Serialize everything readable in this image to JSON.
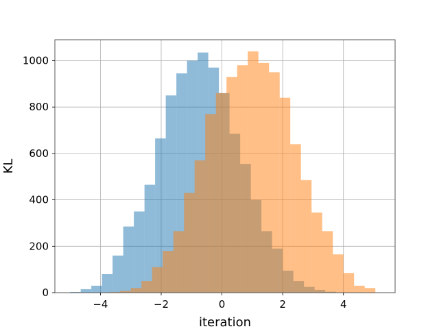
{
  "chart_data": {
    "type": "bar",
    "subtype": "overlapping-histogram",
    "xlabel": "iteration",
    "ylabel": "KL",
    "title": "",
    "xlim": [
      -5.5,
      5.7
    ],
    "ylim": [
      0,
      1090
    ],
    "xticks": [
      -4,
      -2,
      0,
      2,
      4
    ],
    "yticks": [
      0,
      200,
      400,
      600,
      800,
      1000
    ],
    "grid": true,
    "series": [
      {
        "color": "#1f77b4",
        "opacity": 0.5,
        "bins": [
          [
            -5.0,
            -4.65,
            3
          ],
          [
            -4.65,
            -4.3,
            15
          ],
          [
            -4.3,
            -3.95,
            30
          ],
          [
            -3.95,
            -3.6,
            80
          ],
          [
            -3.6,
            -3.25,
            160
          ],
          [
            -3.25,
            -2.9,
            285
          ],
          [
            -2.9,
            -2.55,
            350
          ],
          [
            -2.55,
            -2.2,
            465
          ],
          [
            -2.2,
            -1.85,
            665
          ],
          [
            -1.85,
            -1.5,
            850
          ],
          [
            -1.5,
            -1.15,
            945
          ],
          [
            -1.15,
            -0.8,
            1000
          ],
          [
            -0.8,
            -0.45,
            1035
          ],
          [
            -0.45,
            -0.1,
            970
          ],
          [
            -0.1,
            0.25,
            860
          ],
          [
            0.25,
            0.6,
            685
          ],
          [
            0.6,
            0.95,
            555
          ],
          [
            0.95,
            1.3,
            400
          ],
          [
            1.3,
            1.65,
            265
          ],
          [
            1.65,
            2.0,
            190
          ],
          [
            2.0,
            2.35,
            95
          ],
          [
            2.35,
            2.7,
            50
          ],
          [
            2.7,
            3.05,
            25
          ],
          [
            3.05,
            3.4,
            12
          ],
          [
            3.4,
            3.75,
            4
          ]
        ]
      },
      {
        "color": "#ff7f0e",
        "opacity": 0.5,
        "bins": [
          [
            -3.7,
            -3.35,
            3
          ],
          [
            -3.35,
            -3.0,
            8
          ],
          [
            -3.0,
            -2.65,
            20
          ],
          [
            -2.65,
            -2.3,
            50
          ],
          [
            -2.3,
            -1.95,
            110
          ],
          [
            -1.95,
            -1.6,
            180
          ],
          [
            -1.6,
            -1.25,
            265
          ],
          [
            -1.25,
            -0.9,
            430
          ],
          [
            -0.9,
            -0.55,
            570
          ],
          [
            -0.55,
            -0.2,
            770
          ],
          [
            -0.2,
            0.15,
            860
          ],
          [
            0.15,
            0.5,
            930
          ],
          [
            0.5,
            0.85,
            980
          ],
          [
            0.85,
            1.2,
            1040
          ],
          [
            1.2,
            1.55,
            990
          ],
          [
            1.55,
            1.9,
            950
          ],
          [
            1.9,
            2.25,
            840
          ],
          [
            2.25,
            2.6,
            640
          ],
          [
            2.6,
            2.95,
            485
          ],
          [
            2.95,
            3.3,
            345
          ],
          [
            3.3,
            3.65,
            265
          ],
          [
            3.65,
            4.0,
            165
          ],
          [
            4.0,
            4.35,
            85
          ],
          [
            4.35,
            4.7,
            30
          ],
          [
            4.7,
            5.05,
            20
          ]
        ]
      }
    ]
  }
}
